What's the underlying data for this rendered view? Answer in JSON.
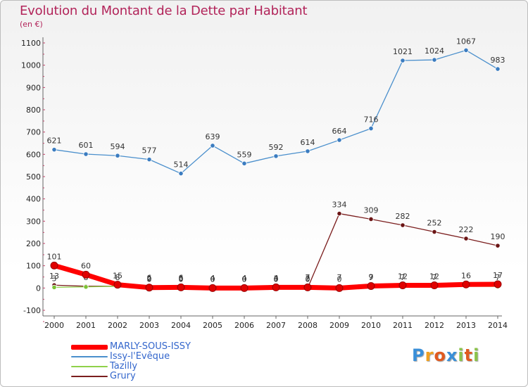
{
  "chart_data": {
    "type": "line",
    "title": "Evolution du Montant de la Dette par Habitant",
    "unit": "(en €)",
    "x": [
      "2000",
      "2001",
      "2002",
      "2003",
      "2004",
      "2005",
      "2006",
      "2007",
      "2008",
      "2009",
      "2010",
      "2011",
      "2012",
      "2013",
      "2014"
    ],
    "yticks": [
      "1100",
      "1000",
      "900",
      "800",
      "700",
      "600",
      "500",
      "400",
      "300",
      "200",
      "100",
      "0",
      "-100"
    ],
    "ylim": [
      -100,
      1100
    ],
    "grid": false,
    "series": [
      {
        "name": "Issy-l'Evêque",
        "color": "#4a8fcc",
        "marker": "#3b7cc0",
        "values": [
          621,
          601,
          594,
          577,
          514,
          639,
          559,
          592,
          614,
          664,
          716,
          1021,
          1024,
          1067,
          983
        ],
        "labels": [
          "621",
          "601",
          "594",
          "577",
          "514",
          "639",
          "559",
          "592",
          "614",
          "664",
          "716",
          "1021",
          "1024",
          "1067",
          "983"
        ]
      },
      {
        "name": "Grury",
        "color": "#7b1e1e",
        "marker": "#6b1515",
        "values": [
          13,
          8,
          8,
          0,
          0,
          0,
          0,
          0,
          0,
          334,
          309,
          282,
          252,
          222,
          190
        ],
        "labels": [
          "13",
          "8",
          "8",
          "0",
          "0",
          "0",
          "0",
          "0",
          "0",
          "334",
          "309",
          "282",
          "252",
          "222",
          "190"
        ]
      },
      {
        "name": "Tazilly",
        "color": "#8fd14a",
        "marker": "#7cc235",
        "values": [
          3,
          5,
          8,
          6,
          6,
          4,
          4,
          4,
          7,
          7,
          7,
          7,
          7,
          8,
          7
        ],
        "labels": [
          "3",
          "",
          "",
          "6",
          "6",
          "4",
          "4",
          "4",
          "7",
          "7",
          "7",
          "7",
          "7",
          "",
          "7"
        ]
      },
      {
        "name": "MARLY-SOUS-ISSY",
        "color": "#ff0000",
        "marker": "#e00000",
        "values": [
          101,
          60,
          15,
          2,
          3,
          0,
          0,
          3,
          3,
          0,
          9,
          12,
          12,
          16,
          17
        ],
        "labels": [
          "101",
          "60",
          "15",
          "2",
          "3",
          "0",
          "0",
          "3",
          "3",
          "0",
          "9",
          "12",
          "12",
          "16",
          "17"
        ]
      }
    ]
  },
  "legend": [
    {
      "label": "MARLY-SOUS-ISSY",
      "color": "#ff0000",
      "text_color": "#3366cc"
    },
    {
      "label": "Issy-l'Evêque",
      "color": "#4a8fcc",
      "text_color": "#3366cc"
    },
    {
      "label": "Tazilly",
      "color": "#8fd14a",
      "text_color": "#3366cc"
    },
    {
      "label": "Grury",
      "color": "#7b1e1e",
      "text_color": "#3366cc"
    }
  ],
  "logo": {
    "letters": [
      "P",
      "r",
      "o",
      "x",
      "i",
      "t",
      "i"
    ],
    "colors": [
      "#3a8fd8",
      "#f0a020",
      "#e05a20",
      "#3a8fd8",
      "#8bc34a",
      "#e05a20",
      "#8bc34a"
    ]
  }
}
